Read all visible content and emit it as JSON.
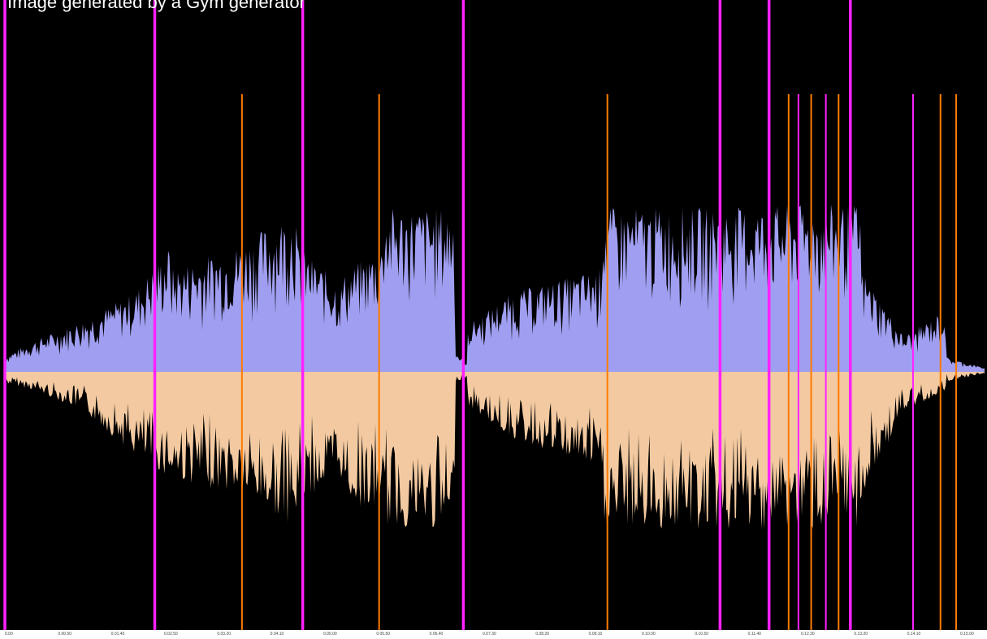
{
  "title": "Image generated by a Gym generator",
  "colors": {
    "background": "#000000",
    "upper_waveform": "#a09ef0",
    "lower_waveform": "#f2c9a0",
    "beat_marker": "#ff22ff",
    "onset_marker": "#ff7b00",
    "ruler": "#ffffff"
  },
  "ruler": {
    "labels": [
      "0.00",
      "0.00.50",
      "0.01.40",
      "0.02.50",
      "0.03.20",
      "0.04.10",
      "0.05.00",
      "0.05.50",
      "0.06.40",
      "0.07.30",
      "0.08.20",
      "0.09.10",
      "0.10.00",
      "0.10.50",
      "0.11.40",
      "0.12.30",
      "0.13.20",
      "0.14.10",
      "0.15.00"
    ]
  },
  "markers": {
    "beats": [
      0.0,
      15.3,
      30.4,
      46.8,
      73.0,
      78.0,
      86.3
    ],
    "onsets": [
      24.2,
      38.2,
      61.5,
      80.0,
      82.3,
      85.1,
      95.5,
      97.1
    ],
    "thin_beats": [
      81.0,
      83.8,
      92.7
    ]
  }
}
